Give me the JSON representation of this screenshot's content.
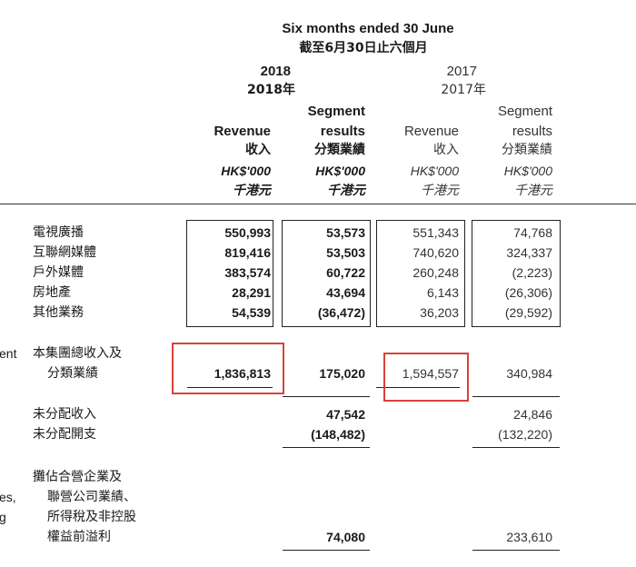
{
  "header": {
    "period_title": "Six months ended 30 June",
    "period_title_cn": "截至6月30日止六個月",
    "year_2018": "2018",
    "year_2018_cn": "2018年",
    "year_2017": "2017",
    "year_2017_cn": "2017年"
  },
  "columns": [
    {
      "line1": "",
      "line2": "Revenue",
      "cn": "收入",
      "unit": "HK$'000",
      "unit_cn": "千港元"
    },
    {
      "line1": "Segment",
      "line2": "results",
      "cn": "分類業績",
      "unit": "HK$'000",
      "unit_cn": "千港元"
    },
    {
      "line1": "",
      "line2": "Revenue",
      "cn": "收入",
      "unit": "HK$'000",
      "unit_cn": "千港元"
    },
    {
      "line1": "Segment",
      "line2": "results",
      "cn": "分類業績",
      "unit": "HK$'000",
      "unit_cn": "千港元"
    }
  ],
  "segments": [
    {
      "label": "電視廣播",
      "values": [
        "550,993",
        "53,573",
        "551,343",
        "74,768"
      ]
    },
    {
      "label": "互聯網媒體",
      "values": [
        "819,416",
        "53,503",
        "740,620",
        "324,337"
      ]
    },
    {
      "label": "戶外媒體",
      "values": [
        "383,574",
        "60,722",
        "260,248",
        "(2,223)"
      ]
    },
    {
      "label": "房地產",
      "values": [
        "28,291",
        "43,694",
        "6,143",
        "(26,306)"
      ]
    },
    {
      "label": "其他業務",
      "values": [
        "54,539",
        "(36,472)",
        "36,203",
        "(29,592)"
      ]
    }
  ],
  "left_fragments": {
    "ent": "ent",
    "es": "es,",
    "g": "g"
  },
  "total": {
    "label_line1": "本集團總收入及",
    "label_line2": "分類業績",
    "values": [
      "1,836,813",
      "175,020",
      "1,594,557",
      "340,984"
    ]
  },
  "unallocated": [
    {
      "label": "未分配收入",
      "result_2018": "47,542",
      "result_2017": "24,846"
    },
    {
      "label": "未分配開支",
      "result_2018": "(148,482)",
      "result_2017": "(132,220)"
    }
  ],
  "profit": {
    "label_lines": [
      "攤佔合營企業及",
      "聯營公司業績、",
      "所得稅及非控股",
      "權益前溢利"
    ],
    "result_2018": "74,080",
    "result_2017": "233,610"
  },
  "colors": {
    "highlight": "#d9413b",
    "text": "#1a1a1a"
  }
}
